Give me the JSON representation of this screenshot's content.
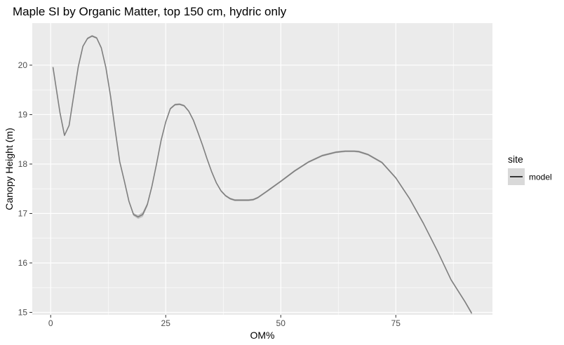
{
  "chart_data": {
    "type": "line",
    "title": "Maple SI by Organic Matter, top 150 cm, hydric only",
    "xlabel": "OM%",
    "ylabel": "Canopy Height (m)",
    "xlim": [
      -4,
      96
    ],
    "ylim": [
      14.95,
      20.85
    ],
    "x_ticks": [
      0,
      25,
      50,
      75
    ],
    "y_ticks": [
      15,
      16,
      17,
      18,
      19,
      20
    ],
    "grid": true,
    "legend": {
      "title": "site",
      "entries": [
        "model"
      ],
      "position": "right"
    },
    "colors": {
      "panel": "#ebebeb",
      "grid_major": "#ffffff",
      "line": "#7f7f7f",
      "ribbon": "#c4c4c4",
      "legend_key_bg": "#d9d9d9",
      "legend_key_line": "#000000"
    },
    "series": [
      {
        "name": "model",
        "x": [
          0.5,
          2,
          3,
          4,
          5,
          6,
          7,
          8,
          9,
          10,
          11,
          12,
          13,
          14,
          15,
          16,
          17,
          18,
          19,
          20,
          21,
          22,
          23,
          24,
          25,
          26,
          27,
          28,
          29,
          30,
          31,
          32,
          33,
          34,
          35,
          36,
          37,
          38,
          39,
          40,
          41,
          42,
          43,
          44,
          45,
          47,
          50,
          53,
          56,
          59,
          62,
          64,
          66,
          67,
          69,
          72,
          75,
          78,
          81,
          84,
          87,
          90,
          91.5
        ],
        "y": [
          19.96,
          19.05,
          18.58,
          18.78,
          19.38,
          19.97,
          20.38,
          20.54,
          20.59,
          20.55,
          20.35,
          19.95,
          19.38,
          18.7,
          18.05,
          17.66,
          17.25,
          16.98,
          16.93,
          16.98,
          17.18,
          17.55,
          18.0,
          18.48,
          18.85,
          19.12,
          19.2,
          19.21,
          19.18,
          19.07,
          18.89,
          18.64,
          18.38,
          18.1,
          17.84,
          17.62,
          17.46,
          17.36,
          17.3,
          17.27,
          17.27,
          17.27,
          17.27,
          17.28,
          17.32,
          17.45,
          17.65,
          17.86,
          18.04,
          18.17,
          18.24,
          18.26,
          18.26,
          18.25,
          18.19,
          18.03,
          17.72,
          17.3,
          16.8,
          16.25,
          15.66,
          15.22,
          14.98
        ],
        "ribbon_halfwidth": [
          0.03,
          0.02,
          0.02,
          0.02,
          0.02,
          0.02,
          0.02,
          0.02,
          0.02,
          0.02,
          0.02,
          0.02,
          0.02,
          0.02,
          0.02,
          0.02,
          0.02,
          0.03,
          0.04,
          0.05,
          0.04,
          0.03,
          0.02,
          0.02,
          0.02,
          0.02,
          0.02,
          0.02,
          0.02,
          0.02,
          0.02,
          0.02,
          0.02,
          0.02,
          0.02,
          0.02,
          0.02,
          0.02,
          0.02,
          0.02,
          0.02,
          0.02,
          0.02,
          0.02,
          0.02,
          0.02,
          0.02,
          0.02,
          0.02,
          0.02,
          0.02,
          0.02,
          0.02,
          0.02,
          0.02,
          0.02,
          0.02,
          0.02,
          0.02,
          0.02,
          0.02,
          0.02,
          0.03
        ]
      }
    ]
  }
}
